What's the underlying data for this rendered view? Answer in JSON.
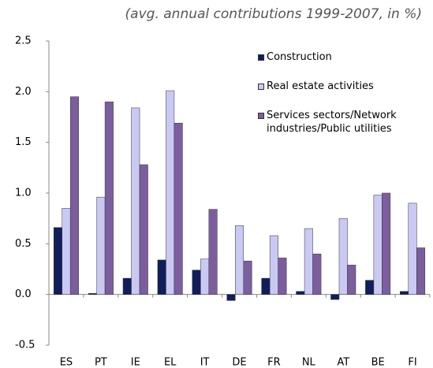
{
  "chart_data": {
    "type": "bar",
    "title": "(avg. annual contributions 1999-2007, in %)",
    "categories": [
      "ES",
      "PT",
      "IE",
      "EL",
      "IT",
      "DE",
      "FR",
      "NL",
      "AT",
      "BE",
      "FI"
    ],
    "series": [
      {
        "name": "Construction",
        "color": "#101f5c",
        "values": [
          0.66,
          0.01,
          0.16,
          0.34,
          0.24,
          -0.06,
          0.16,
          0.03,
          -0.05,
          0.14,
          0.03
        ]
      },
      {
        "name": "Real estate activities",
        "color": "#c9c9f4",
        "values": [
          0.85,
          0.96,
          1.84,
          2.01,
          0.35,
          0.68,
          0.58,
          0.65,
          0.75,
          0.98,
          0.9
        ]
      },
      {
        "name": "Services sectors/Network industries/Public utilities",
        "color": "#7c5e9e",
        "values": [
          1.95,
          1.9,
          1.28,
          1.69,
          0.84,
          0.33,
          0.36,
          0.4,
          0.29,
          1.0,
          0.46
        ]
      }
    ],
    "ylim": [
      -0.5,
      2.5
    ],
    "yticks": [
      {
        "value": -0.5,
        "label": "-0.5"
      },
      {
        "value": 0,
        "label": "0.0"
      },
      0.5,
      {
        "value": 1,
        "label": "1.0"
      },
      1.5,
      {
        "value": 2,
        "label": "2.0"
      },
      2.5
    ],
    "grid": false,
    "legend": "upper right"
  }
}
